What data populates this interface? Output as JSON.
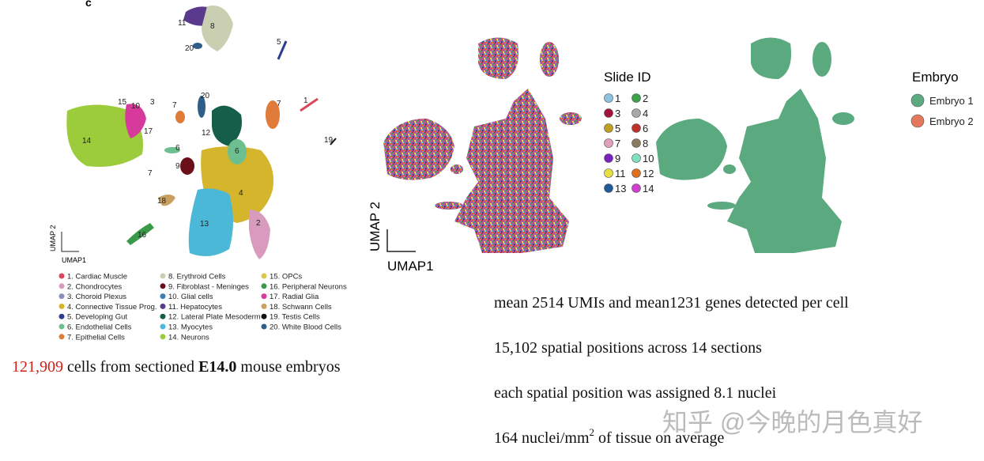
{
  "panel_c": {
    "label": "c",
    "cluster_labels": [
      "11",
      "8",
      "20",
      "5",
      "20",
      "7",
      "7",
      "1",
      "15",
      "10",
      "3",
      "14",
      "17",
      "12",
      "6",
      "6",
      "9",
      "7",
      "4",
      "18",
      "2",
      "13",
      "16",
      "19"
    ],
    "axis_y": "UMAP 2",
    "axis_x": "UMAP1",
    "legend": [
      {
        "text": "1. Cardiac Muscle",
        "color": "#d9475a"
      },
      {
        "text": "2. Chondrocytes",
        "color": "#d89bbd"
      },
      {
        "text": "3. Choroid Plexus",
        "color": "#8a90b8"
      },
      {
        "text": "4. Connective Tissue Prog.",
        "color": "#d4b52b"
      },
      {
        "text": "5. Developing Gut",
        "color": "#2a3d8f"
      },
      {
        "text": "6. Endothelial Cells",
        "color": "#6dbf8f"
      },
      {
        "text": "7. Epithelial Cells",
        "color": "#e07b39"
      },
      {
        "text": "8. Erythroid Cells",
        "color": "#c9cfb0"
      },
      {
        "text": "9. Fibroblast - Meninges",
        "color": "#6b0f1a"
      },
      {
        "text": "10. Glial cells",
        "color": "#3e7fb8"
      },
      {
        "text": "11. Hepatocytes",
        "color": "#5a3a8c"
      },
      {
        "text": "12. Lateral Plate Mesoderm",
        "color": "#155e4a"
      },
      {
        "text": "13. Myocytes",
        "color": "#4cb8d8"
      },
      {
        "text": "14. Neurons",
        "color": "#9ccc3c"
      },
      {
        "text": "15. OPCs",
        "color": "#d9c84b"
      },
      {
        "text": "16. Peripheral Neurons",
        "color": "#3a9a4a"
      },
      {
        "text": "17. Radial Glia",
        "color": "#d63a9a"
      },
      {
        "text": "18. Schwann Cells",
        "color": "#c9a060"
      },
      {
        "text": "19. Testis Cells",
        "color": "#111111"
      },
      {
        "text": "20. White Blood Cells",
        "color": "#2f5f88"
      }
    ]
  },
  "panel_slide": {
    "axis_y": "UMAP 2",
    "axis_x": "UMAP1",
    "legend_title": "Slide ID",
    "legend": [
      {
        "text": "1",
        "color": "#8ec3e0"
      },
      {
        "text": "2",
        "color": "#3aa04a"
      },
      {
        "text": "3",
        "color": "#a3123a"
      },
      {
        "text": "4",
        "color": "#a8a8a8"
      },
      {
        "text": "5",
        "color": "#c0a020"
      },
      {
        "text": "6",
        "color": "#c0302a"
      },
      {
        "text": "7",
        "color": "#e0a0c0"
      },
      {
        "text": "8",
        "color": "#8a7a60"
      },
      {
        "text": "9",
        "color": "#7a20c0"
      },
      {
        "text": "10",
        "color": "#80e0c0"
      },
      {
        "text": "11",
        "color": "#e8e040"
      },
      {
        "text": "12",
        "color": "#e07020"
      },
      {
        "text": "13",
        "color": "#1f5a9a"
      },
      {
        "text": "14",
        "color": "#d040d0"
      }
    ]
  },
  "panel_embryo": {
    "legend_title": "Embryo",
    "legend": [
      {
        "text": "Embryo 1",
        "color": "#5aa97f"
      },
      {
        "text": "Embryo 2",
        "color": "#e3785a"
      }
    ]
  },
  "notes": {
    "cells": {
      "count": "121,909",
      "before_bold": " cells from sectioned ",
      "bold": "E14.0",
      "after_bold": " mouse embryos"
    },
    "lines": [
      "mean 2514 UMIs and mean1231 genes detected per cell",
      "15,102 spatial positions across 14 sections",
      "each spatial position was assigned 8.1 nuclei"
    ],
    "density": {
      "text": "164 nuclei/mm",
      "superscript": "2",
      "rest": " of tissue on average"
    }
  },
  "watermark": "知乎 @今晚的月色真好"
}
